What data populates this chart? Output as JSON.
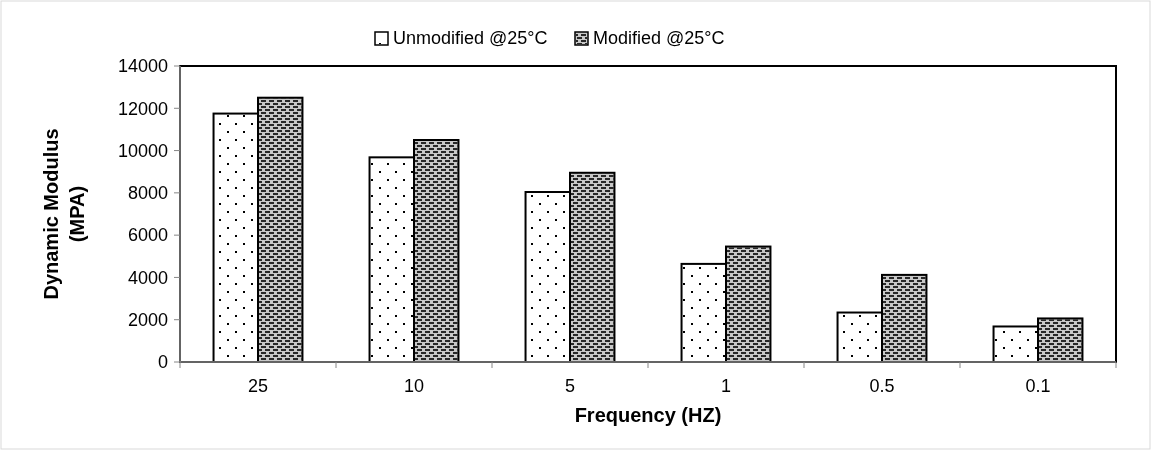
{
  "chart_data": {
    "type": "bar",
    "xlabel": "Frequency (HZ)",
    "ylabel": "Dynamic  Modulus (MPA)",
    "categories": [
      "25",
      "10",
      "5",
      "1",
      "0.5",
      "0.1"
    ],
    "series": [
      {
        "name": "Unmodified @25°C",
        "color": "#ffffff",
        "values": [
          11750,
          9680,
          8040,
          4640,
          2340,
          1680
        ]
      },
      {
        "name": "Modified @25°C",
        "color": "#c8c8c8",
        "values": [
          12500,
          10500,
          8950,
          5460,
          4120,
          2060
        ]
      }
    ],
    "ylim": [
      0,
      14000
    ],
    "yticks": [
      0,
      2000,
      4000,
      6000,
      8000,
      10000,
      12000,
      14000
    ],
    "grid": false,
    "legend": "top"
  }
}
